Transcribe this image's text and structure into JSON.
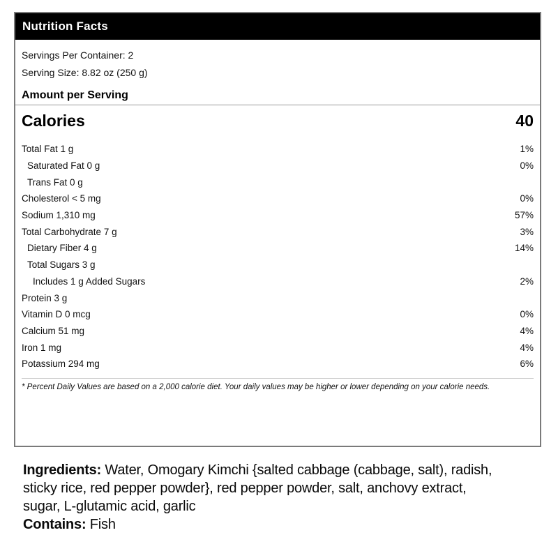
{
  "label": {
    "title": "Nutrition Facts",
    "servings_per_container": "Servings Per Container: 2",
    "serving_size": "Serving Size: 8.82 oz (250 g)",
    "amount_per_serving": "Amount per Serving",
    "calories": {
      "label": "Calories",
      "value": "40"
    },
    "nutrients": [
      {
        "name": "Total Fat 1 g",
        "dv": "1%",
        "indent": 0
      },
      {
        "name": "Saturated Fat 0 g",
        "dv": "0%",
        "indent": 1
      },
      {
        "name": "Trans Fat 0 g",
        "dv": "",
        "indent": 1
      },
      {
        "name": "Cholesterol < 5 mg",
        "dv": "0%",
        "indent": 0
      },
      {
        "name": "Sodium 1,310 mg",
        "dv": "57%",
        "indent": 0
      },
      {
        "name": "Total Carbohydrate 7 g",
        "dv": "3%",
        "indent": 0
      },
      {
        "name": "Dietary Fiber 4 g",
        "dv": "14%",
        "indent": 1
      },
      {
        "name": "Total Sugars 3 g",
        "dv": "",
        "indent": 1
      },
      {
        "name": "Includes 1 g Added Sugars",
        "dv": "2%",
        "indent": 2
      },
      {
        "name": "Protein 3 g",
        "dv": "",
        "indent": 0
      },
      {
        "name": "Vitamin D 0 mcg",
        "dv": "0%",
        "indent": 0
      },
      {
        "name": "Calcium 51 mg",
        "dv": "4%",
        "indent": 0
      },
      {
        "name": "Iron 1 mg",
        "dv": "4%",
        "indent": 0
      },
      {
        "name": "Potassium 294 mg",
        "dv": "6%",
        "indent": 0
      }
    ],
    "footnote": "* Percent Daily Values are based on a 2,000 calorie diet. Your daily values may be higher or lower depending on your calorie needs."
  },
  "ingredients": {
    "heading": "Ingredients:",
    "text": " Water, Omogary Kimchi {salted cabbage (cabbage, salt), radish, sticky rice, red pepper powder}, red pepper powder, salt, anchovy extract, sugar, L-glutamic acid, garlic",
    "contains_heading": "Contains:",
    "contains_text": " Fish"
  },
  "colors": {
    "header_bg": "#000000",
    "header_text": "#ffffff",
    "box_border": "#7a7a7a",
    "section_separator": "#999999",
    "footnote_separator": "#cccccc",
    "text": "#000000"
  }
}
